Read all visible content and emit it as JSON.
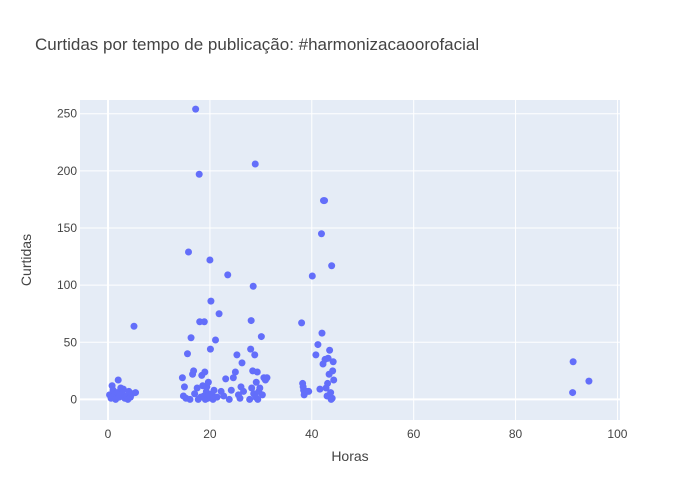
{
  "chart_data": {
    "type": "scatter",
    "title": "Curtidas por tempo de publicação: #harmonizacaoorofacial",
    "xlabel": "Horas",
    "ylabel": "Curtidas",
    "xlim": [
      -5.5,
      100.5
    ],
    "ylim": [
      -18,
      262
    ],
    "xticks": [
      0,
      20,
      40,
      60,
      80,
      100
    ],
    "yticks": [
      0,
      50,
      100,
      150,
      200,
      250
    ],
    "grid": true,
    "colors": {
      "plot_bg": "#e5ecf6",
      "grid": "#ffffff",
      "marker": "#636efa"
    },
    "points": [
      [
        0.3,
        4
      ],
      [
        0.6,
        1
      ],
      [
        0.8,
        12
      ],
      [
        1.0,
        8
      ],
      [
        1.2,
        3
      ],
      [
        1.5,
        0
      ],
      [
        1.8,
        6
      ],
      [
        2.0,
        17
      ],
      [
        2.2,
        2
      ],
      [
        2.5,
        10
      ],
      [
        2.8,
        5
      ],
      [
        3.0,
        9
      ],
      [
        3.3,
        1
      ],
      [
        3.6,
        3
      ],
      [
        3.9,
        0
      ],
      [
        4.1,
        7
      ],
      [
        4.4,
        2
      ],
      [
        4.7,
        5
      ],
      [
        5.1,
        64
      ],
      [
        5.4,
        6
      ],
      [
        14.6,
        19
      ],
      [
        14.8,
        3
      ],
      [
        15.0,
        11
      ],
      [
        15.3,
        1
      ],
      [
        15.6,
        40
      ],
      [
        15.8,
        129
      ],
      [
        16.1,
        0
      ],
      [
        16.3,
        54
      ],
      [
        16.6,
        22
      ],
      [
        16.8,
        25
      ],
      [
        17.0,
        5
      ],
      [
        17.2,
        254
      ],
      [
        17.5,
        10
      ],
      [
        17.7,
        0
      ],
      [
        17.9,
        197
      ],
      [
        18.0,
        68
      ],
      [
        18.2,
        2
      ],
      [
        18.4,
        21
      ],
      [
        18.6,
        12
      ],
      [
        18.8,
        3
      ],
      [
        18.9,
        68
      ],
      [
        19.0,
        24
      ],
      [
        19.1,
        0
      ],
      [
        19.3,
        7
      ],
      [
        19.4,
        11
      ],
      [
        19.6,
        1
      ],
      [
        19.7,
        15
      ],
      [
        19.8,
        4
      ],
      [
        20.0,
        122
      ],
      [
        20.1,
        44
      ],
      [
        20.2,
        86
      ],
      [
        20.4,
        5
      ],
      [
        20.6,
        0
      ],
      [
        20.8,
        8
      ],
      [
        21.1,
        52
      ],
      [
        21.4,
        2
      ],
      [
        21.8,
        75
      ],
      [
        22.2,
        7
      ],
      [
        22.7,
        3
      ],
      [
        23.1,
        18
      ],
      [
        23.5,
        109
      ],
      [
        23.8,
        0
      ],
      [
        24.2,
        8
      ],
      [
        24.6,
        19
      ],
      [
        25.0,
        24
      ],
      [
        25.3,
        39
      ],
      [
        25.6,
        4
      ],
      [
        25.9,
        1
      ],
      [
        26.1,
        11
      ],
      [
        26.3,
        32
      ],
      [
        26.6,
        7
      ],
      [
        27.8,
        0
      ],
      [
        28.0,
        44
      ],
      [
        28.1,
        69
      ],
      [
        28.2,
        10
      ],
      [
        28.4,
        25
      ],
      [
        28.5,
        99
      ],
      [
        28.6,
        5
      ],
      [
        28.8,
        39
      ],
      [
        28.9,
        206
      ],
      [
        29.0,
        2
      ],
      [
        29.1,
        15
      ],
      [
        29.3,
        24
      ],
      [
        29.4,
        0
      ],
      [
        29.6,
        7
      ],
      [
        29.8,
        10
      ],
      [
        30.1,
        55
      ],
      [
        30.3,
        4
      ],
      [
        30.6,
        19
      ],
      [
        30.9,
        17
      ],
      [
        31.2,
        19
      ],
      [
        38.0,
        67
      ],
      [
        38.2,
        14
      ],
      [
        38.3,
        11
      ],
      [
        38.4,
        8
      ],
      [
        38.5,
        4
      ],
      [
        38.6,
        6
      ],
      [
        39.0,
        7
      ],
      [
        39.4,
        7
      ],
      [
        40.1,
        108
      ],
      [
        40.8,
        39
      ],
      [
        41.2,
        48
      ],
      [
        41.6,
        9
      ],
      [
        41.9,
        145
      ],
      [
        42.0,
        58
      ],
      [
        42.2,
        31
      ],
      [
        42.3,
        174
      ],
      [
        42.5,
        174
      ],
      [
        42.6,
        35
      ],
      [
        42.8,
        10
      ],
      [
        43.0,
        3
      ],
      [
        43.1,
        14
      ],
      [
        43.2,
        36
      ],
      [
        43.4,
        22
      ],
      [
        43.5,
        43
      ],
      [
        43.7,
        6
      ],
      [
        43.8,
        0
      ],
      [
        43.9,
        117
      ],
      [
        44.0,
        1
      ],
      [
        44.1,
        25
      ],
      [
        44.2,
        33
      ],
      [
        44.3,
        17
      ],
      [
        91.2,
        6
      ],
      [
        91.3,
        33
      ],
      [
        94.4,
        16
      ]
    ]
  }
}
